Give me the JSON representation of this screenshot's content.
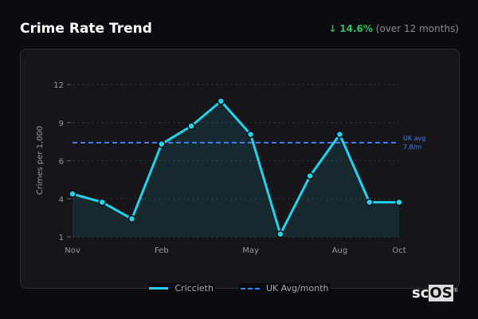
{
  "header": {
    "title": "Crime Rate Trend",
    "change_arrow": "↓",
    "change_pct": "14.6%",
    "change_period": "(over 12 months)"
  },
  "colors": {
    "series": "#22d3ee",
    "avg": "#3b82f6",
    "positive": "#22c55e"
  },
  "chart_data": {
    "type": "area",
    "ylabel": "Crimes per 1,000",
    "xlabel": "",
    "categories": [
      "Nov",
      "Dec",
      "Jan",
      "Feb",
      "Mar",
      "Apr",
      "May",
      "Jun",
      "Jul",
      "Aug",
      "Sep",
      "Oct"
    ],
    "x_tick_labels": [
      "Nov",
      "Feb",
      "May",
      "Aug",
      "Oct"
    ],
    "y_tick_labels": [
      "1",
      "4",
      "6",
      "9",
      "12"
    ],
    "ylim": [
      1,
      12
    ],
    "grid": true,
    "series": [
      {
        "name": "Criccieth",
        "values": [
          4.1,
          3.5,
          2.3,
          7.7,
          9.0,
          10.8,
          8.4,
          1.2,
          5.4,
          8.4,
          3.5,
          3.5
        ]
      }
    ],
    "reference_line": {
      "name": "UK Avg/month",
      "value": 7.8,
      "label_line1": "UK avg",
      "label_line2": "7.8/m"
    },
    "legend": {
      "placement": "bottom",
      "entries": [
        "Criccieth",
        "UK Avg/month"
      ]
    }
  },
  "logo": {
    "text_a": "sc",
    "text_b": "OS",
    "mark": "®"
  }
}
